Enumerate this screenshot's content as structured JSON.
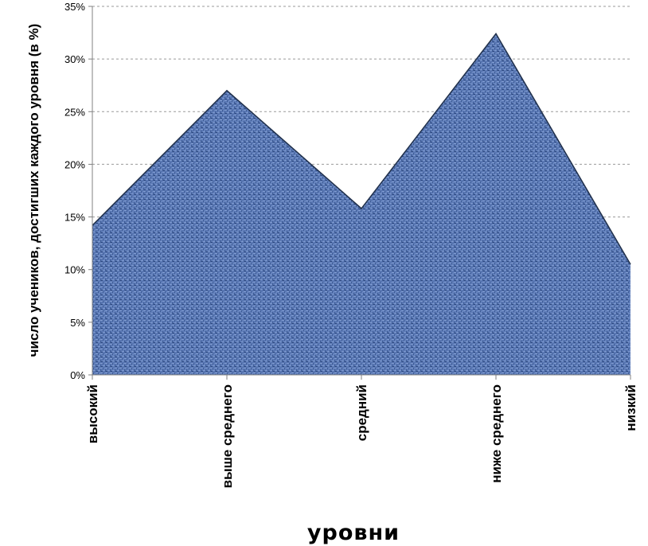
{
  "chart_data": {
    "type": "area",
    "categories": [
      "высокий",
      "выше среднего",
      "средний",
      "ниже среднего",
      "низкий"
    ],
    "values": [
      14.2,
      27.0,
      15.8,
      32.4,
      10.5
    ],
    "ylim": [
      0,
      35
    ],
    "yticks": [
      "0%",
      "5%",
      "10%",
      "15%",
      "20%",
      "25%",
      "30%",
      "35%"
    ],
    "xlabel": "уровни",
    "ylabel": "число учеников, достигших каждого уровня (в %)",
    "grid": true,
    "fill_color": "#4f6ea8",
    "outline_color": "#1f2f4a"
  }
}
